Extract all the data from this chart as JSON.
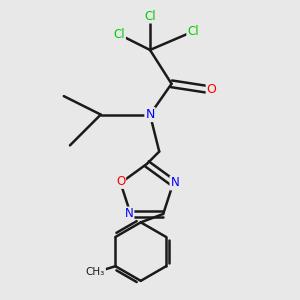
{
  "bg_color": "#e8e8e8",
  "bond_color": "#1a1a1a",
  "bond_width": 1.8,
  "atom_colors": {
    "N": "#0000ff",
    "O": "#ff0000",
    "Cl": "#00cc00",
    "C": "#1a1a1a"
  },
  "figsize": [
    3.0,
    3.0
  ],
  "dpi": 100
}
